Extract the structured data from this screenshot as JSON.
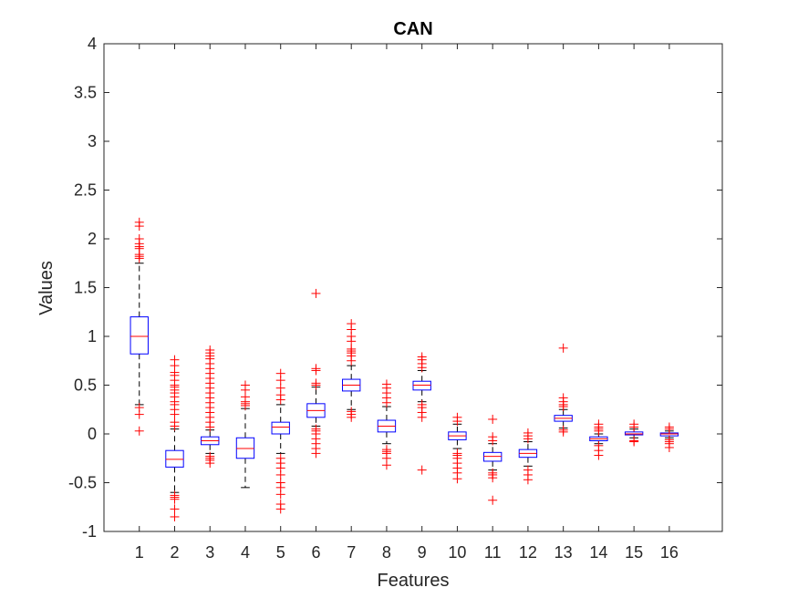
{
  "chart_data": {
    "type": "box",
    "title": "CAN",
    "xlabel": "Features",
    "ylabel": "Values",
    "ylim": [
      -1,
      4
    ],
    "yticks": [
      "-1",
      "-0.5",
      "0",
      "0.5",
      "1",
      "1.5",
      "2",
      "2.5",
      "3",
      "3.5",
      "4"
    ],
    "categories": [
      "1",
      "2",
      "3",
      "4",
      "5",
      "6",
      "7",
      "8",
      "9",
      "10",
      "11",
      "12",
      "13",
      "14",
      "15",
      "16"
    ],
    "xlim": [
      0,
      17.5
    ],
    "grid": false,
    "colors": {
      "box": "#0000ff",
      "median": "#ff0000",
      "whisker": "#000000",
      "outlier": "#ff0000"
    },
    "boxes": [
      {
        "label": "1",
        "whisker_low": 0.3,
        "q1": 0.82,
        "median": 1.0,
        "q3": 1.2,
        "whisker_high": 1.75,
        "outliers": [
          0.03,
          0.2,
          0.27,
          1.8,
          1.82,
          1.84,
          1.9,
          1.92,
          1.95,
          2.0,
          2.13,
          2.17
        ]
      },
      {
        "label": "2",
        "whisker_low": -0.6,
        "q1": -0.34,
        "median": -0.26,
        "q3": -0.17,
        "whisker_high": 0.05,
        "outliers": [
          -0.85,
          -0.77,
          -0.67,
          -0.65,
          -0.63,
          0.08,
          0.12,
          0.2,
          0.25,
          0.3,
          0.33,
          0.38,
          0.42,
          0.45,
          0.48,
          0.5,
          0.55,
          0.6,
          0.63,
          0.7,
          0.76
        ]
      },
      {
        "label": "3",
        "whisker_low": -0.2,
        "q1": -0.11,
        "median": -0.07,
        "q3": -0.03,
        "whisker_high": 0.04,
        "outliers": [
          -0.3,
          -0.27,
          -0.25,
          -0.23,
          0.07,
          0.12,
          0.17,
          0.22,
          0.27,
          0.32,
          0.37,
          0.42,
          0.47,
          0.52,
          0.57,
          0.62,
          0.67,
          0.72,
          0.77,
          0.8,
          0.83,
          0.86
        ]
      },
      {
        "label": "4",
        "whisker_low": -0.55,
        "q1": -0.25,
        "median": -0.15,
        "q3": -0.04,
        "whisker_high": 0.26,
        "outliers": [
          0.29,
          0.31,
          0.33,
          0.38,
          0.45,
          0.5
        ]
      },
      {
        "label": "5",
        "whisker_low": -0.2,
        "q1": 0.0,
        "median": 0.07,
        "q3": 0.12,
        "whisker_high": 0.3,
        "outliers": [
          -0.77,
          -0.72,
          -0.62,
          -0.55,
          -0.5,
          -0.42,
          -0.35,
          -0.3,
          -0.25,
          0.35,
          0.4,
          0.47,
          0.55,
          0.62
        ]
      },
      {
        "label": "6",
        "whisker_low": 0.08,
        "q1": 0.17,
        "median": 0.24,
        "q3": 0.31,
        "whisker_high": 0.48,
        "outliers": [
          -0.2,
          -0.15,
          -0.1,
          -0.05,
          0.0,
          0.03,
          0.05,
          0.5,
          0.52,
          0.65,
          0.67,
          1.44
        ]
      },
      {
        "label": "7",
        "whisker_low": 0.25,
        "q1": 0.44,
        "median": 0.5,
        "q3": 0.56,
        "whisker_high": 0.7,
        "outliers": [
          0.17,
          0.2,
          0.23,
          0.75,
          0.8,
          0.83,
          0.85,
          0.87,
          0.95,
          1.0,
          1.07,
          1.13
        ]
      },
      {
        "label": "8",
        "whisker_low": -0.1,
        "q1": 0.02,
        "median": 0.08,
        "q3": 0.14,
        "whisker_high": 0.28,
        "outliers": [
          -0.32,
          -0.25,
          -0.2,
          -0.18,
          -0.16,
          0.32,
          0.37,
          0.42,
          0.47,
          0.51
        ]
      },
      {
        "label": "9",
        "whisker_low": 0.33,
        "q1": 0.45,
        "median": 0.5,
        "q3": 0.54,
        "whisker_high": 0.65,
        "outliers": [
          -0.37,
          0.17,
          0.22,
          0.27,
          0.3,
          0.68,
          0.72,
          0.76,
          0.79
        ]
      },
      {
        "label": "10",
        "whisker_low": -0.15,
        "q1": -0.06,
        "median": -0.02,
        "q3": 0.02,
        "whisker_high": 0.1,
        "outliers": [
          -0.46,
          -0.4,
          -0.35,
          -0.3,
          -0.25,
          -0.22,
          -0.2,
          0.13,
          0.17
        ]
      },
      {
        "label": "11",
        "whisker_low": -0.37,
        "q1": -0.28,
        "median": -0.23,
        "q3": -0.19,
        "whisker_high": -0.1,
        "outliers": [
          -0.68,
          -0.45,
          -0.42,
          -0.4,
          -0.07,
          -0.03,
          0.15
        ]
      },
      {
        "label": "12",
        "whisker_low": -0.33,
        "q1": -0.24,
        "median": -0.2,
        "q3": -0.16,
        "whisker_high": -0.08,
        "outliers": [
          -0.47,
          -0.42,
          -0.37,
          -0.05,
          -0.02,
          0.01
        ]
      },
      {
        "label": "13",
        "whisker_low": 0.06,
        "q1": 0.13,
        "median": 0.16,
        "q3": 0.19,
        "whisker_high": 0.25,
        "outliers": [
          0.02,
          0.04,
          0.28,
          0.3,
          0.33,
          0.37,
          0.88
        ]
      },
      {
        "label": "14",
        "whisker_low": -0.1,
        "q1": -0.07,
        "median": -0.05,
        "q3": -0.03,
        "whisker_high": 0.0,
        "outliers": [
          -0.22,
          -0.17,
          -0.12,
          0.03,
          0.05,
          0.07,
          0.1
        ]
      },
      {
        "label": "15",
        "whisker_low": -0.04,
        "q1": -0.01,
        "median": 0.0,
        "q3": 0.02,
        "whisker_high": 0.05,
        "outliers": [
          -0.08,
          -0.07,
          0.07,
          0.1
        ]
      },
      {
        "label": "16",
        "whisker_low": -0.04,
        "q1": -0.02,
        "median": 0.0,
        "q3": 0.01,
        "whisker_high": 0.03,
        "outliers": [
          -0.14,
          -0.1,
          -0.08,
          -0.06,
          0.05,
          0.07
        ]
      }
    ]
  }
}
